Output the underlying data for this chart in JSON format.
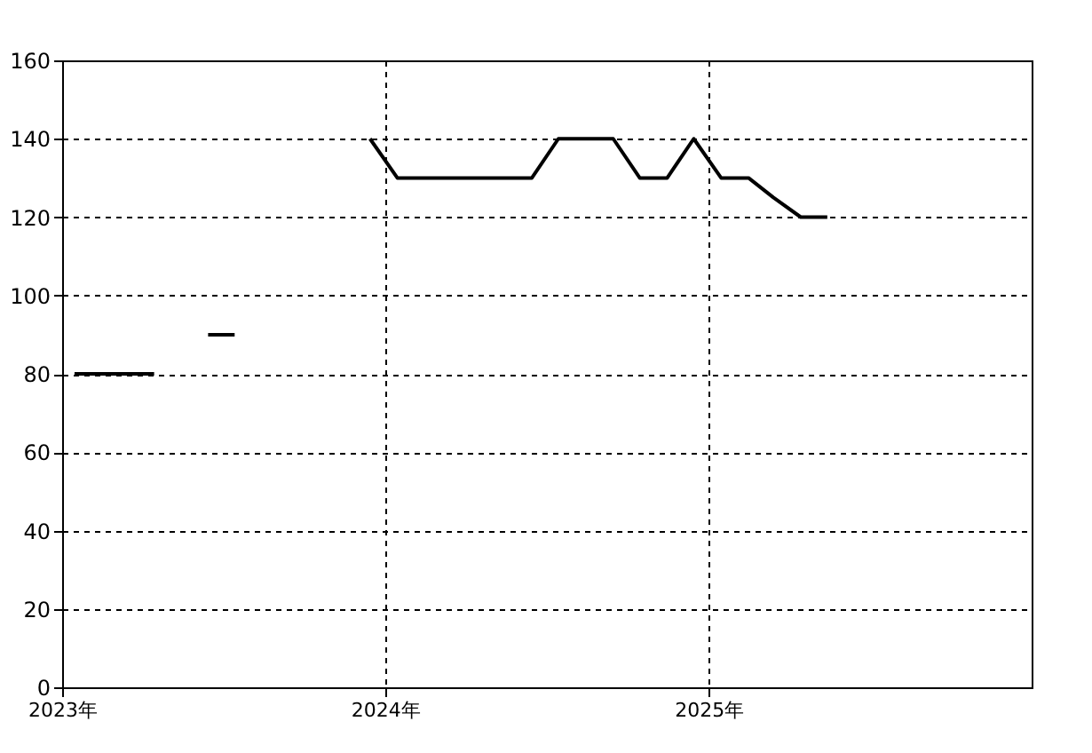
{
  "chart_data": {
    "type": "line",
    "x": [
      "2023-01-15",
      "2023-02-15",
      "2023-03-15",
      "2023-04-15",
      "2023-05-15",
      "2023-06-15",
      "2023-07-15",
      "2023-08-15",
      "2023-09-15",
      "2023-10-15",
      "2023-11-15",
      "2023-12-15",
      "2024-01-15",
      "2024-02-15",
      "2024-03-15",
      "2024-04-15",
      "2024-05-15",
      "2024-06-15",
      "2024-07-15",
      "2024-08-15",
      "2024-09-15",
      "2024-10-15",
      "2024-11-15",
      "2024-12-15",
      "2025-01-15",
      "2025-02-15",
      "2025-03-15",
      "2025-04-15",
      "2025-05-15"
    ],
    "series": [
      {
        "color": "#000000",
        "values": [
          80,
          80,
          80,
          80,
          null,
          90,
          90,
          null,
          null,
          null,
          null,
          140,
          130,
          130,
          130,
          130,
          130,
          130,
          140,
          140,
          140,
          130,
          130,
          140,
          130,
          130,
          125,
          120,
          120
        ]
      }
    ],
    "xlim": [
      "2023-01-01",
      "2026-01-01"
    ],
    "xticks": [
      {
        "value": "2023-01-01",
        "label": "2023年"
      },
      {
        "value": "2024-01-01",
        "label": "2024年"
      },
      {
        "value": "2025-01-01",
        "label": "2025年"
      }
    ],
    "ylim": [
      0,
      160
    ],
    "yticks": [
      0,
      20,
      40,
      60,
      80,
      100,
      120,
      140,
      160
    ],
    "grid": true,
    "legend": false,
    "marker": "none",
    "line_style": "solid"
  }
}
